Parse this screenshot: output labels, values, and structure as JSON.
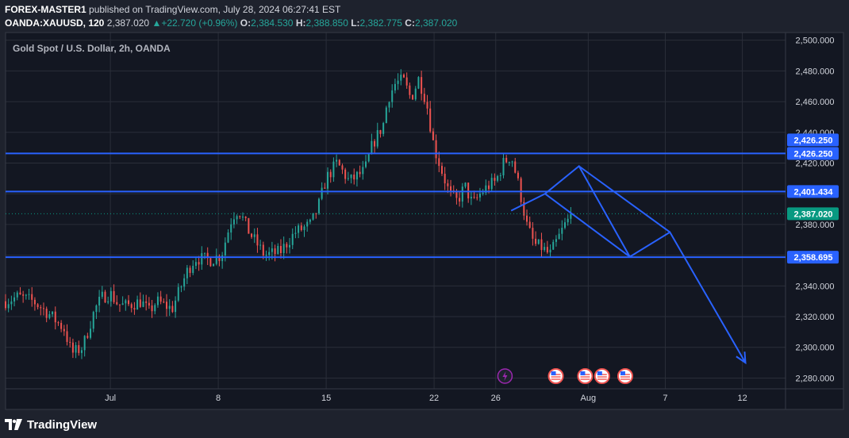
{
  "header": {
    "publisher": "FOREX-MASTER1",
    "published_text": "published on TradingView.com, July 28, 2024 06:27:41 EST",
    "symbol": "OANDA:XAUUSD, 120",
    "last_price": "2,387.020",
    "change": "▲+22.720 (+0.96%)",
    "o_label": "O:",
    "o_value": "2,384.530",
    "h_label": "H:",
    "h_value": "2,388.850",
    "l_label": "L:",
    "l_value": "2,382.775",
    "c_label": "C:",
    "c_value": "2,387.020"
  },
  "footer": {
    "brand": "TradingView"
  },
  "colors": {
    "background": "#1e222d",
    "plot_bg": "#131722",
    "grid": "#2a2e39",
    "up": "#26a69a",
    "down": "#ef5350",
    "line": "#2962ff",
    "price_tag": "#089981",
    "event_us": "#ef5350",
    "event_bolt": "#9c27b0"
  },
  "chart_data": {
    "type": "candlestick",
    "title": "Gold Spot / U.S. Dollar, 2h, OANDA",
    "ylim": [
      2273,
      2505
    ],
    "y_ticks": [
      2280,
      2300,
      2320,
      2340,
      2360,
      2380,
      2400,
      2420,
      2440,
      2460,
      2480,
      2500
    ],
    "y_tick_labels": [
      "2,280.000",
      "2,300.000",
      "2,320.000",
      "2,340.000",
      "2,360.000",
      "2,380.000",
      "2,400.000",
      "2,420.000",
      "2,440.000",
      "2,460.000",
      "2,480.000",
      "2,500.000"
    ],
    "x_ticks": [
      {
        "day": 1,
        "label": "Jul"
      },
      {
        "day": 8,
        "label": "8"
      },
      {
        "day": 15,
        "label": "15"
      },
      {
        "day": 22,
        "label": "22"
      },
      {
        "day": 26,
        "label": "26"
      },
      {
        "day": 32,
        "label": "Aug"
      },
      {
        "day": 37,
        "label": "7"
      },
      {
        "day": 42,
        "label": "12"
      }
    ],
    "xlim_days": [
      -5.8,
      44.8
    ],
    "candle_path": [
      [
        -5.8,
        2330
      ],
      [
        -5.0,
        2333
      ],
      [
        -4.0,
        2330
      ],
      [
        -3.0,
        2322
      ],
      [
        -2.0,
        2312
      ],
      [
        -1.5,
        2296
      ],
      [
        -0.8,
        2300
      ],
      [
        0.0,
        2325
      ],
      [
        0.5,
        2333
      ],
      [
        1.0,
        2335
      ],
      [
        1.5,
        2328
      ],
      [
        2.0,
        2327
      ],
      [
        3.0,
        2330
      ],
      [
        3.5,
        2323
      ],
      [
        4.0,
        2330
      ],
      [
        5.0,
        2325
      ],
      [
        6.0,
        2350
      ],
      [
        6.5,
        2358
      ],
      [
        7.5,
        2357
      ],
      [
        8.2,
        2360
      ],
      [
        8.9,
        2385
      ],
      [
        9.3,
        2390
      ],
      [
        10.0,
        2375
      ],
      [
        11.0,
        2360
      ],
      [
        12.0,
        2362
      ],
      [
        13.0,
        2375
      ],
      [
        14.0,
        2380
      ],
      [
        14.5,
        2392
      ],
      [
        15.0,
        2410
      ],
      [
        15.7,
        2420
      ],
      [
        16.5,
        2408
      ],
      [
        17.5,
        2415
      ],
      [
        18.0,
        2432
      ],
      [
        18.7,
        2445
      ],
      [
        19.0,
        2462
      ],
      [
        19.5,
        2472
      ],
      [
        20.0,
        2474
      ],
      [
        20.5,
        2462
      ],
      [
        21.0,
        2475
      ],
      [
        21.5,
        2460
      ],
      [
        22.0,
        2430
      ],
      [
        22.5,
        2415
      ],
      [
        23.0,
        2400
      ],
      [
        23.5,
        2395
      ],
      [
        24.0,
        2405
      ],
      [
        24.5,
        2393
      ],
      [
        25.0,
        2400
      ],
      [
        25.5,
        2405
      ],
      [
        26.0,
        2408
      ],
      [
        26.5,
        2420
      ],
      [
        27.0,
        2425
      ],
      [
        27.5,
        2405
      ],
      [
        28.0,
        2380
      ],
      [
        28.5,
        2367
      ],
      [
        29.0,
        2365
      ],
      [
        29.5,
        2360
      ],
      [
        30.0,
        2370
      ],
      [
        30.5,
        2380
      ],
      [
        31.0,
        2387
      ]
    ],
    "levels": [
      {
        "value": 2426.25,
        "label": "2,426.250"
      },
      {
        "value": 2401.434,
        "label": "2,401.434"
      },
      {
        "value": 2358.695,
        "label": "2,358.695"
      }
    ],
    "extra_tag": {
      "value": 2426.25,
      "label": "2,426.250",
      "offset": "above"
    },
    "last_price": {
      "value": 2387.02,
      "label": "2,387.020"
    },
    "projection": [
      {
        "day": 27.0,
        "price": 2389
      },
      {
        "day": 29.2,
        "price": 2400
      },
      {
        "day": 31.4,
        "price": 2418
      },
      {
        "day": 34.7,
        "price": 2359
      },
      {
        "day": 37.3,
        "price": 2375
      },
      {
        "day": 42.2,
        "price": 2290
      }
    ],
    "events": [
      {
        "day": 26.6,
        "type": "bolt"
      },
      {
        "day": 29.9,
        "type": "us"
      },
      {
        "day": 31.8,
        "type": "us"
      },
      {
        "day": 32.9,
        "type": "us"
      },
      {
        "day": 34.4,
        "type": "us"
      }
    ]
  }
}
